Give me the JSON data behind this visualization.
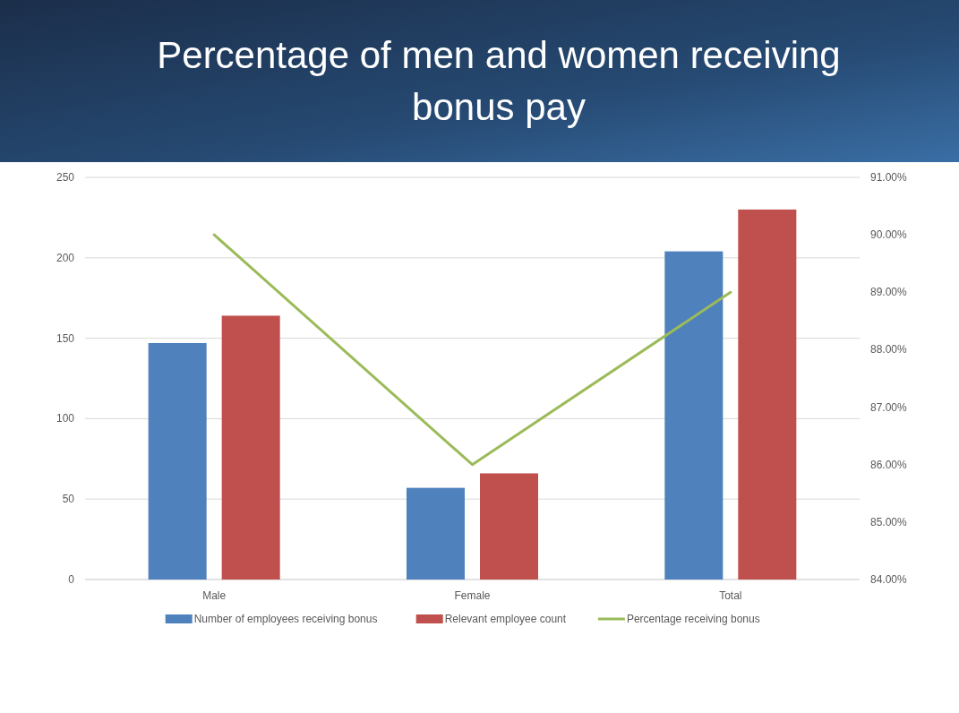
{
  "chart_data": {
    "type": "bar",
    "title": "Percentage of men and women receiving bonus pay",
    "categories": [
      "Male",
      "Female",
      "Total"
    ],
    "series": [
      {
        "name": "Number of employees receiving bonus",
        "color": "#4f81bd",
        "values": [
          147,
          57,
          204
        ]
      },
      {
        "name": "Relevant employee count",
        "color": "#c0504d",
        "values": [
          164,
          66,
          230
        ]
      },
      {
        "name": "Percentage receiving bonus",
        "color": "#9bbb59",
        "type": "line",
        "axis": "y2",
        "values": [
          90.0,
          86.0,
          89.0
        ]
      }
    ],
    "ylim": [
      0,
      250
    ],
    "yticks": [
      0,
      50,
      100,
      150,
      200,
      250
    ],
    "y2lim": [
      84,
      91
    ],
    "y2ticks": [
      {
        "value": 84,
        "label": "84.00%"
      },
      {
        "value": 85,
        "label": "85.00%"
      },
      {
        "value": 86,
        "label": "86.00%"
      },
      {
        "value": 87,
        "label": "87.00%"
      },
      {
        "value": 88,
        "label": "88.00%"
      },
      {
        "value": 89,
        "label": "89.00%"
      },
      {
        "value": 90,
        "label": "90.00%"
      },
      {
        "value": 91,
        "label": "91.00%"
      }
    ],
    "grid": "y",
    "legend": "bottom",
    "marker": "none",
    "line_style": "solid"
  }
}
